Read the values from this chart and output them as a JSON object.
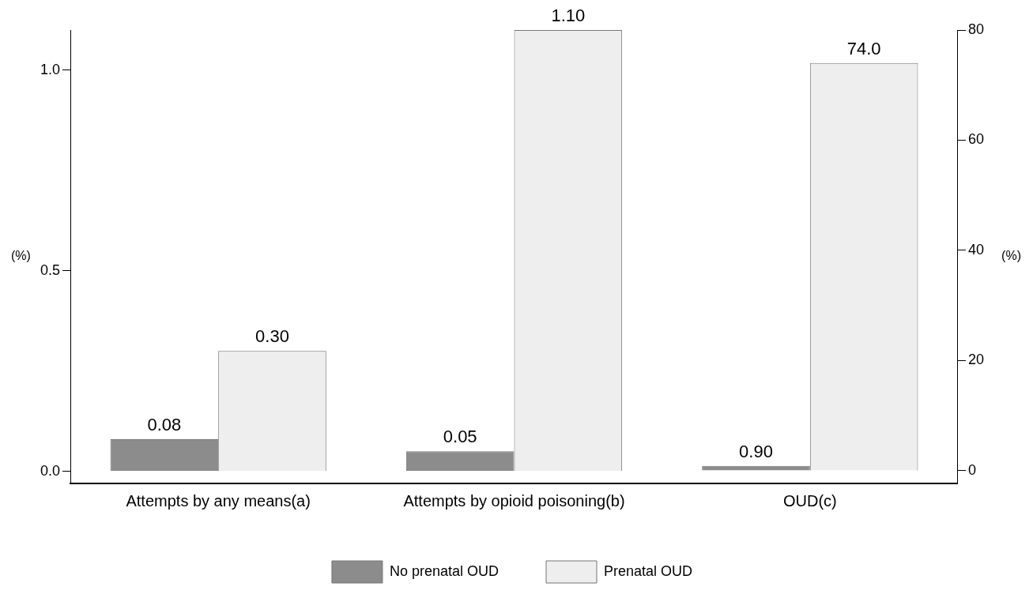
{
  "chart_data": {
    "type": "bar",
    "categories": [
      "Attempts by any means(a)",
      "Attempts by opioid poisoning(b)",
      "OUD(c)"
    ],
    "ylabel": "(%)",
    "y2label": "(%)",
    "series": [
      {
        "name": "No prenatal OUD",
        "color": "#8c8c8c",
        "values": [
          0.08,
          0.05,
          null
        ],
        "value_labels": [
          "0.08",
          "0.05",
          null
        ]
      },
      {
        "name": "Prenatal OUD",
        "color": "#eeeeee",
        "values": [
          0.3,
          1.1,
          null
        ],
        "value_labels": [
          "0.30",
          "1.10",
          null
        ]
      },
      {
        "color": "#8c8c8c",
        "axis": "y2",
        "values": [
          null,
          null,
          0.9
        ],
        "value_labels": [
          null,
          null,
          "0.90"
        ]
      },
      {
        "color": "#eeeeee",
        "axis": "y2",
        "values": [
          null,
          null,
          74.0
        ],
        "value_labels": [
          null,
          null,
          "74.0"
        ]
      }
    ],
    "ylim": [
      -0.03,
      1.1
    ],
    "yticks": [
      {
        "value": 0,
        "label": "0.0"
      },
      {
        "value": 0.5,
        "label": "0.5"
      },
      {
        "value": 1,
        "label": "1.0"
      }
    ],
    "y2lim": [
      -2.3,
      80
    ],
    "y2ticks": [
      0,
      20,
      40,
      60,
      80
    ],
    "grid": false,
    "legend": "bottom"
  }
}
